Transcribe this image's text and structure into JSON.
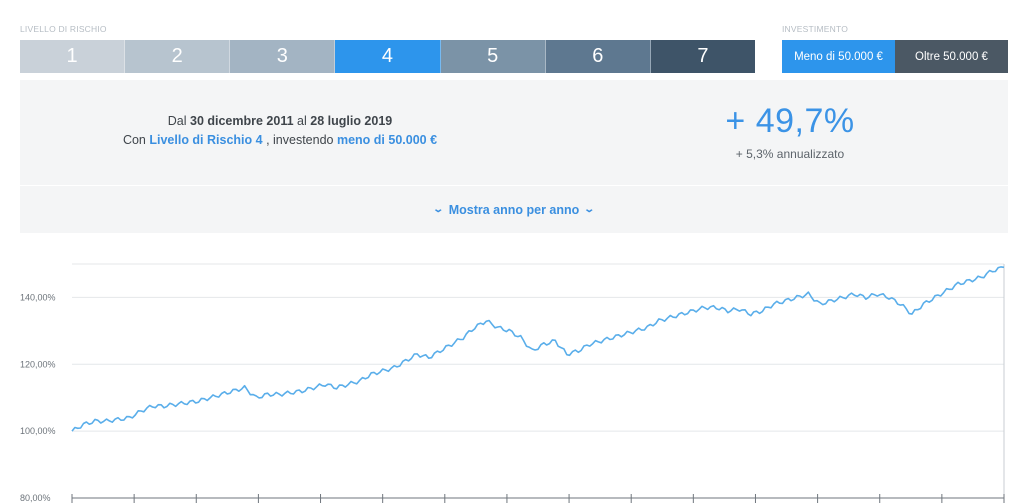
{
  "risk": {
    "label": "LIVELLO DI RISCHIO",
    "levels": [
      {
        "label": "1",
        "color": "#c9d1d9"
      },
      {
        "label": "2",
        "color": "#b7c4cf"
      },
      {
        "label": "3",
        "color": "#a3b4c3"
      },
      {
        "label": "4",
        "color": "#2d95ec",
        "selected": true
      },
      {
        "label": "5",
        "color": "#7b93a7"
      },
      {
        "label": "6",
        "color": "#5e7890"
      },
      {
        "label": "7",
        "color": "#3e5468"
      }
    ]
  },
  "investment": {
    "label": "INVESTIMENTO",
    "options": [
      {
        "label": "Meno di 50.000 €",
        "color": "#2d95ec",
        "selected": true
      },
      {
        "label": "Oltre 50.000 €",
        "color": "#4b5864"
      }
    ]
  },
  "summary": {
    "from_prefix": "Dal",
    "from_date": "30 dicembre 2011",
    "to_prefix": "al",
    "to_date": "28 luglio 2019",
    "with_prefix": "Con",
    "risk_link": "Livello di Rischio 4",
    "invest_prefix": ", investendo",
    "invest_link": "meno di 50.000 €",
    "performance": "+ 49,7%",
    "annualized": "+ 5,3% annualizzato"
  },
  "toggle": {
    "label": "Mostra anno per anno",
    "icon_left": "chevron-down-icon",
    "icon_right": "chevron-down-icon"
  },
  "chart_data": {
    "type": "line",
    "title": "",
    "xlabel": "",
    "ylabel": "",
    "ylim": [
      80,
      150
    ],
    "yticks": [
      "80,00%",
      "100,00%",
      "120,00%",
      "140,00%"
    ],
    "ytick_values": [
      80,
      100,
      120,
      140
    ],
    "grid": true,
    "line_color": "#5aaeea",
    "series": [
      {
        "values": [
          100,
          102,
          103,
          103,
          103.5,
          104,
          106,
          107.5,
          107.5,
          108,
          108.5,
          109,
          110,
          111,
          112,
          113,
          110,
          111,
          111,
          111.5,
          112,
          113,
          114,
          113,
          114,
          115,
          117,
          118,
          119,
          121,
          123,
          122,
          124,
          126,
          128,
          131,
          133,
          131,
          130,
          128,
          124,
          126,
          127,
          123,
          124,
          126,
          127,
          128,
          129,
          130,
          131,
          133,
          134,
          135,
          136,
          137,
          137,
          136,
          136.5,
          135,
          136,
          138,
          139,
          140,
          141,
          138,
          139,
          140,
          141,
          140,
          141,
          140,
          138,
          135,
          138,
          140,
          142,
          144,
          145,
          146,
          148,
          149
        ]
      }
    ]
  }
}
